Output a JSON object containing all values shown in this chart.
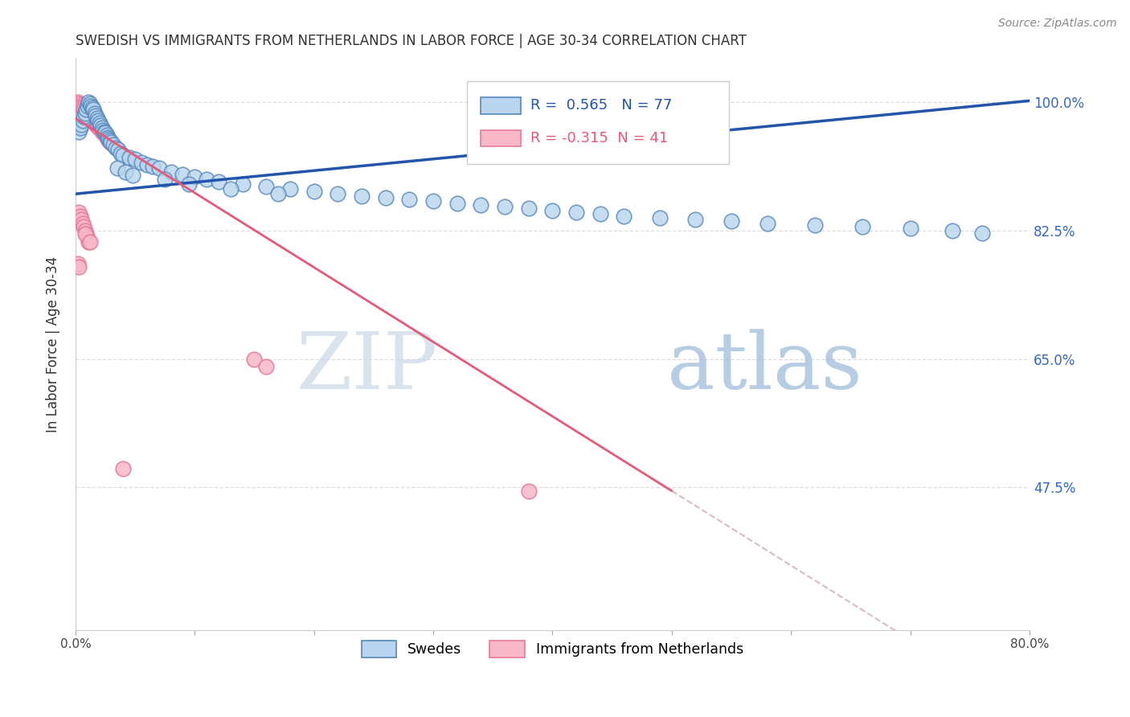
{
  "title": "SWEDISH VS IMMIGRANTS FROM NETHERLANDS IN LABOR FORCE | AGE 30-34 CORRELATION CHART",
  "source": "Source: ZipAtlas.com",
  "ylabel": "In Labor Force | Age 30-34",
  "ytick_labels": [
    "100.0%",
    "82.5%",
    "65.0%",
    "47.5%"
  ],
  "ytick_values": [
    1.0,
    0.825,
    0.65,
    0.475
  ],
  "xmin": 0.0,
  "xmax": 0.8,
  "ymin": 0.28,
  "ymax": 1.06,
  "legend1_label": "Swedes",
  "legend2_label": "Immigrants from Netherlands",
  "R_blue": 0.565,
  "N_blue": 77,
  "R_pink": -0.315,
  "N_pink": 41,
  "blue_face": "#b8d4ee",
  "blue_edge": "#5588bb",
  "pink_face": "#f8b8c8",
  "pink_edge": "#e87898",
  "blue_line_color": "#2255aa",
  "pink_line_color": "#e85878",
  "watermark_zip": "ZIP",
  "watermark_atlas": "atlas",
  "watermark_color_zip": "#c8d8e8",
  "watermark_color_atlas": "#98b8d8",
  "blue_x": [
    0.003,
    0.004,
    0.005,
    0.006,
    0.007,
    0.008,
    0.009,
    0.01,
    0.011,
    0.012,
    0.013,
    0.014,
    0.015,
    0.016,
    0.017,
    0.018,
    0.019,
    0.02,
    0.021,
    0.022,
    0.023,
    0.024,
    0.025,
    0.026,
    0.027,
    0.028,
    0.029,
    0.03,
    0.032,
    0.034,
    0.036,
    0.038,
    0.04,
    0.045,
    0.05,
    0.055,
    0.06,
    0.065,
    0.07,
    0.08,
    0.09,
    0.1,
    0.11,
    0.12,
    0.14,
    0.16,
    0.18,
    0.2,
    0.22,
    0.24,
    0.26,
    0.28,
    0.3,
    0.32,
    0.34,
    0.36,
    0.38,
    0.4,
    0.42,
    0.44,
    0.46,
    0.49,
    0.52,
    0.55,
    0.58,
    0.62,
    0.66,
    0.7,
    0.735,
    0.76,
    0.035,
    0.042,
    0.048,
    0.075,
    0.095,
    0.13,
    0.17
  ],
  "blue_y": [
    0.96,
    0.965,
    0.97,
    0.975,
    0.98,
    0.985,
    0.99,
    0.995,
    1.0,
    0.998,
    0.995,
    0.992,
    0.99,
    0.985,
    0.982,
    0.978,
    0.975,
    0.972,
    0.968,
    0.965,
    0.962,
    0.96,
    0.958,
    0.955,
    0.952,
    0.95,
    0.948,
    0.945,
    0.942,
    0.938,
    0.935,
    0.93,
    0.928,
    0.925,
    0.922,
    0.918,
    0.915,
    0.912,
    0.91,
    0.905,
    0.902,
    0.898,
    0.895,
    0.892,
    0.888,
    0.885,
    0.882,
    0.878,
    0.875,
    0.872,
    0.87,
    0.868,
    0.865,
    0.862,
    0.86,
    0.858,
    0.855,
    0.852,
    0.85,
    0.848,
    0.845,
    0.842,
    0.84,
    0.838,
    0.835,
    0.832,
    0.83,
    0.828,
    0.825,
    0.822,
    0.91,
    0.905,
    0.9,
    0.895,
    0.888,
    0.882,
    0.875
  ],
  "pink_x": [
    0.002,
    0.003,
    0.004,
    0.005,
    0.006,
    0.007,
    0.008,
    0.009,
    0.01,
    0.011,
    0.012,
    0.013,
    0.014,
    0.015,
    0.016,
    0.017,
    0.018,
    0.019,
    0.02,
    0.022,
    0.024,
    0.026,
    0.028,
    0.03,
    0.003,
    0.004,
    0.005,
    0.006,
    0.007,
    0.008,
    0.009,
    0.01,
    0.011,
    0.002,
    0.003,
    0.15,
    0.16,
    0.04,
    0.38,
    0.008,
    0.012
  ],
  "pink_y": [
    1.0,
    0.998,
    0.996,
    0.994,
    0.992,
    0.99,
    0.988,
    0.986,
    0.984,
    0.982,
    0.98,
    0.978,
    0.976,
    0.974,
    0.972,
    0.97,
    0.968,
    0.966,
    0.964,
    0.96,
    0.956,
    0.952,
    0.948,
    0.944,
    0.85,
    0.845,
    0.84,
    0.835,
    0.83,
    0.825,
    0.82,
    0.815,
    0.81,
    0.78,
    0.775,
    0.65,
    0.64,
    0.5,
    0.47,
    0.82,
    0.81
  ]
}
